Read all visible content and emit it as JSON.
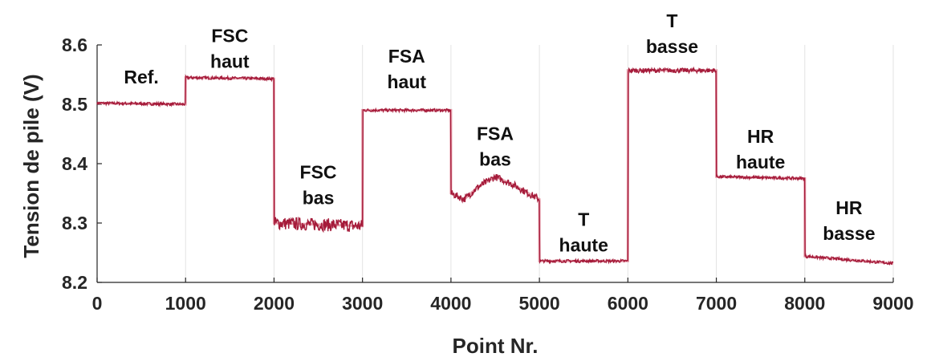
{
  "chart_data": {
    "type": "line",
    "title": "",
    "xlabel": "Point Nr.",
    "ylabel": "Tension de pile (V)",
    "xlim": [
      0,
      9000
    ],
    "ylim": [
      8.2,
      8.6
    ],
    "xticks": [
      "0",
      "1000",
      "2000",
      "3000",
      "4000",
      "5000",
      "6000",
      "7000",
      "8000",
      "9000"
    ],
    "yticks": [
      "8.2",
      "8.3",
      "8.4",
      "8.5",
      "8.6"
    ],
    "grid": "vertical",
    "colors": {
      "series": "#a51b3a",
      "mean": "#e8a0ad"
    },
    "series": [
      {
        "x": [
          0,
          1000,
          1000,
          2000,
          2000,
          3000,
          3000,
          4000,
          4000,
          4150,
          4300,
          4500,
          4700,
          4850,
          5000,
          5000,
          6000,
          6000,
          7000,
          7000,
          8000,
          8000,
          9000
        ],
        "values": [
          8.502,
          8.5,
          8.545,
          8.543,
          8.3,
          8.295,
          8.49,
          8.49,
          8.35,
          8.34,
          8.36,
          8.378,
          8.365,
          8.352,
          8.34,
          8.236,
          8.236,
          8.557,
          8.557,
          8.378,
          8.375,
          8.244,
          8.232
        ]
      }
    ],
    "annotations": [
      {
        "lines": [
          "Ref."
        ],
        "x": 500,
        "y": 8.535
      },
      {
        "lines": [
          "FSC",
          "haut"
        ],
        "x": 1500,
        "y": 8.605
      },
      {
        "lines": [
          "FSC",
          "bas"
        ],
        "x": 2500,
        "y": 8.375
      },
      {
        "lines": [
          "FSA",
          "haut"
        ],
        "x": 3500,
        "y": 8.57
      },
      {
        "lines": [
          "FSA",
          "bas"
        ],
        "x": 4500,
        "y": 8.44
      },
      {
        "lines": [
          "T",
          "haute"
        ],
        "x": 5500,
        "y": 8.295
      },
      {
        "lines": [
          "T",
          "basse"
        ],
        "x": 6500,
        "y": 8.63
      },
      {
        "lines": [
          "HR",
          "haute"
        ],
        "x": 7500,
        "y": 8.435
      },
      {
        "lines": [
          "HR",
          "basse"
        ],
        "x": 8500,
        "y": 8.315
      }
    ]
  }
}
